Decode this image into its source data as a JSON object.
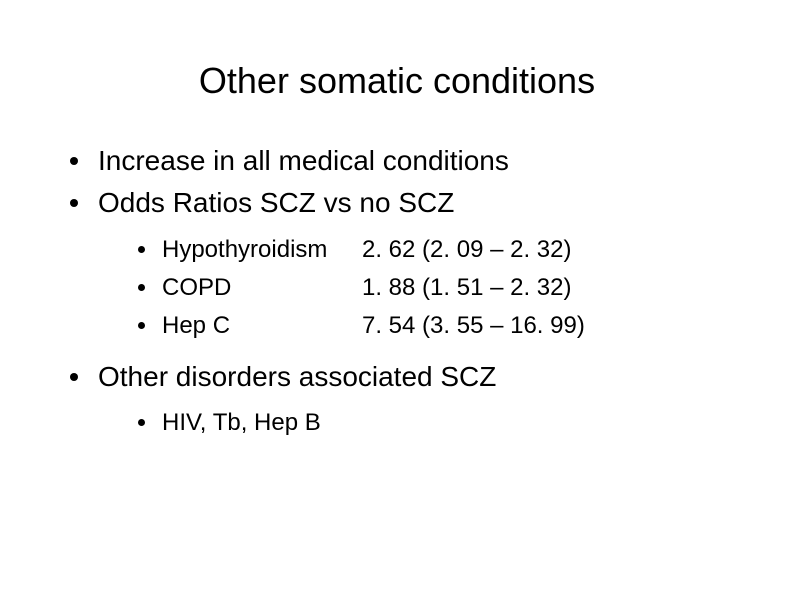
{
  "title": "Other somatic conditions",
  "bullets": {
    "b1": "Increase in all medical conditions",
    "b2": "Odds Ratios SCZ vs no SCZ",
    "b3": "Other disorders associated SCZ"
  },
  "odds": [
    {
      "name": "Hypothyroidism",
      "value": "2. 62 (2. 09 – 2. 32)"
    },
    {
      "name": "COPD",
      "value": "1. 88 (1. 51 – 2. 32)"
    },
    {
      "name": "Hep C",
      "value": "7. 54 (3. 55 – 16. 99)"
    }
  ],
  "other_list": {
    "item1": "HIV, Tb, Hep B"
  },
  "style": {
    "background_color": "#ffffff",
    "text_color": "#000000",
    "title_fontsize": 36,
    "level1_fontsize": 28,
    "level2_fontsize": 24,
    "font_family": "Arial"
  }
}
